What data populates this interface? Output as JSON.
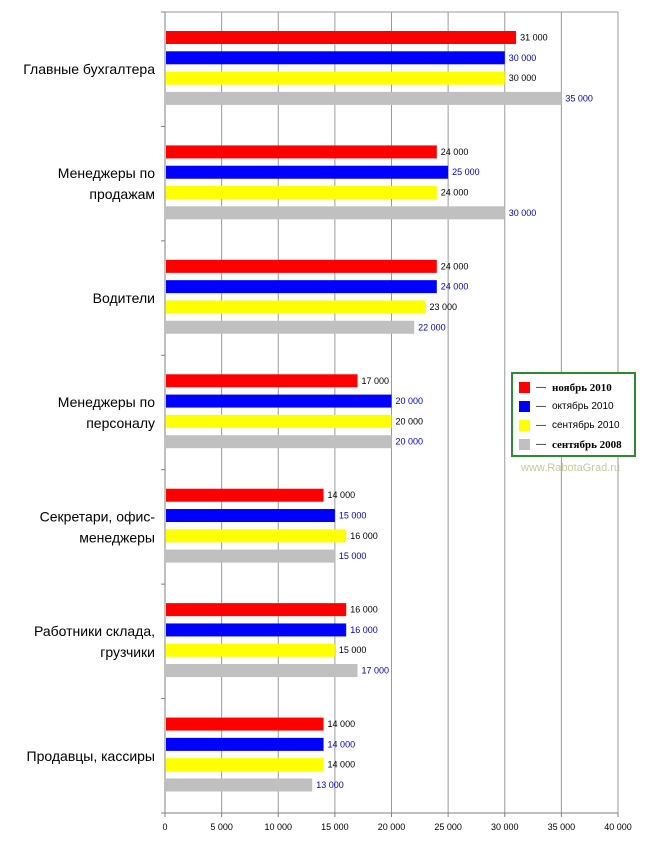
{
  "chart_data": {
    "type": "bar",
    "orientation": "horizontal",
    "categories": [
      "Главные бухгалтера",
      "Менеджеры по продажам",
      "Водители",
      "Менеджеры по персоналу",
      "Секретари, офис-менеджеры",
      "Работники склада, грузчики",
      "Продавцы, кассиры"
    ],
    "category_lines": [
      [
        "Главные бухгалтера"
      ],
      [
        "Менеджеры по",
        "продажам"
      ],
      [
        "Водители"
      ],
      [
        "Менеджеры по",
        "персоналу"
      ],
      [
        "Секретари, офис-",
        "менеджеры"
      ],
      [
        "Работники склада,",
        "грузчики"
      ],
      [
        "Продавцы, кассиры"
      ]
    ],
    "series": [
      {
        "name": "ноябрь 2010",
        "color": "#ff0000",
        "label_color": "#000000",
        "values": [
          31000,
          24000,
          24000,
          17000,
          14000,
          16000,
          14000
        ]
      },
      {
        "name": "октябрь 2010",
        "color": "#0000ff",
        "label_color": "#0000cc",
        "values": [
          30000,
          25000,
          24000,
          20000,
          15000,
          16000,
          14000
        ]
      },
      {
        "name": "сентябрь 2010",
        "color": "#ffff00",
        "label_color": "#000000",
        "values": [
          30000,
          24000,
          23000,
          20000,
          16000,
          15000,
          14000
        ]
      },
      {
        "name": "сентябрь 2008",
        "color": "#c0c0c0",
        "label_color": "#0000cc",
        "values": [
          35000,
          30000,
          22000,
          20000,
          15000,
          17000,
          13000
        ]
      }
    ],
    "value_labels": [
      [
        "31 000",
        "24 000",
        "24 000",
        "17 000",
        "14 000",
        "16 000",
        "14 000"
      ],
      [
        "30 000",
        "25 000",
        "24 000",
        "20 000",
        "15 000",
        "16 000",
        "14 000"
      ],
      [
        "30 000",
        "24 000",
        "23 000",
        "20 000",
        "16 000",
        "15 000",
        "14 000"
      ],
      [
        "35 000",
        "30 000",
        "22 000",
        "20 000",
        "15 000",
        "17 000",
        "13 000"
      ]
    ],
    "xlim": [
      0,
      40000
    ],
    "xticks": [
      0,
      5000,
      10000,
      15000,
      20000,
      25000,
      30000,
      35000,
      40000
    ],
    "xtick_labels": [
      "0",
      "5 000",
      "10 000",
      "15 000",
      "20 000",
      "25 000",
      "30 000",
      "35 000",
      "40 000"
    ],
    "grid": true,
    "legend_position": "right"
  },
  "legend": {
    "dash": "—",
    "items": [
      {
        "label": "ноябрь 2010",
        "color": "#ff0000",
        "bold": true
      },
      {
        "label": "октябрь 2010",
        "color": "#0000ff",
        "bold": false
      },
      {
        "label": "сентябрь 2010",
        "color": "#ffff00",
        "bold": false
      },
      {
        "label": "сентябрь 2008",
        "color": "#c0c0c0",
        "bold": true
      }
    ]
  },
  "watermark": "www.RabotaGrad.ru"
}
